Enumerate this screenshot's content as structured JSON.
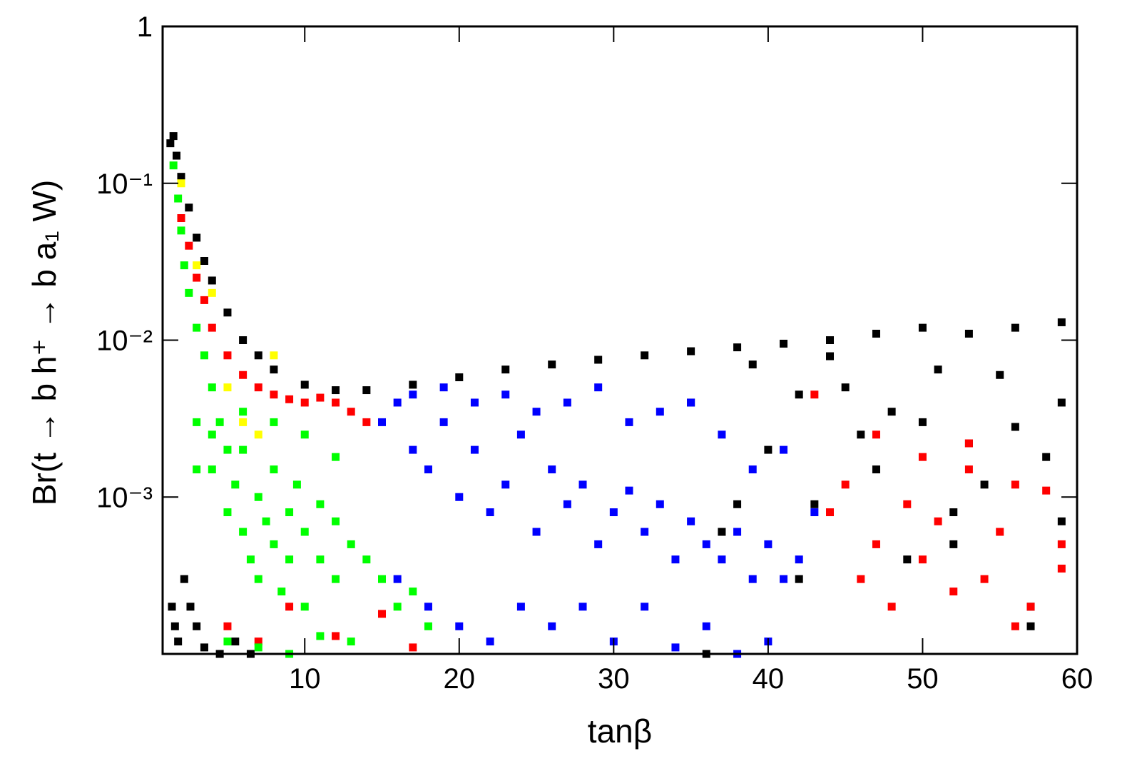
{
  "chart_data": {
    "type": "scatter",
    "x_label": "tanβ",
    "y_label": "Br(t → b h⁺ → b a₁ W)",
    "xlim": [
      0.8,
      60
    ],
    "xticks": [
      10,
      20,
      30,
      40,
      50,
      60
    ],
    "ylim": [
      0.0001,
      1
    ],
    "log_y": true,
    "yticks": [
      {
        "value": 1,
        "label": "1"
      },
      {
        "value": 0.1,
        "label": "10⁻¹"
      },
      {
        "value": 0.01,
        "label": "10⁻²"
      },
      {
        "value": 0.001,
        "label": "10⁻³"
      }
    ],
    "series": [
      {
        "color": "#000000",
        "x": [
          1.3,
          1.5,
          1.7,
          2,
          2.5,
          3,
          3.5,
          4,
          5,
          6,
          7,
          8,
          10,
          12,
          14,
          17,
          20,
          23,
          26,
          29,
          32,
          35,
          38,
          41,
          44,
          47,
          50,
          53,
          56,
          59,
          1.4,
          1.6,
          1.8,
          2.2,
          2.6,
          3,
          3.5,
          4.5,
          5.5,
          6.5,
          35,
          37,
          40,
          42,
          45,
          47,
          50,
          52,
          55,
          57,
          59,
          36,
          39,
          43,
          46,
          49,
          51,
          54,
          58,
          44,
          48,
          53,
          57,
          38,
          42,
          52,
          56,
          59
        ],
        "values": [
          0.18,
          0.2,
          0.15,
          0.11,
          0.07,
          0.045,
          0.032,
          0.024,
          0.015,
          0.01,
          0.008,
          0.0065,
          0.0052,
          0.0048,
          0.0048,
          0.0052,
          0.0058,
          0.0065,
          0.007,
          0.0075,
          0.008,
          0.0085,
          0.009,
          0.0095,
          0.01,
          0.011,
          0.012,
          0.011,
          0.012,
          0.013,
          0.0002,
          0.00015,
          0.00012,
          0.0003,
          0.0002,
          0.00015,
          0.00011,
          0.0001,
          0.00012,
          0.0001,
          0.004,
          0.0006,
          0.002,
          0.0003,
          0.005,
          0.0015,
          0.003,
          0.0008,
          0.006,
          0.0002,
          0.004,
          0.0001,
          0.007,
          0.0009,
          0.0025,
          0.0004,
          0.0065,
          0.0012,
          0.0018,
          0.0079,
          0.0035,
          0.0022,
          0.00015,
          0.0009,
          0.0045,
          0.0005,
          0.0028,
          0.0007
        ]
      },
      {
        "color": "#ff0000",
        "x": [
          2,
          2.5,
          3,
          3.5,
          4,
          5,
          6,
          7,
          8,
          9,
          10,
          11,
          12,
          13,
          14,
          5,
          7,
          9,
          12,
          15,
          17,
          44,
          45,
          46,
          47,
          48,
          49,
          50,
          51,
          52,
          53,
          54,
          55,
          56,
          57,
          58,
          59,
          43,
          47,
          50,
          53,
          56,
          59
        ],
        "values": [
          0.06,
          0.04,
          0.025,
          0.018,
          0.012,
          0.008,
          0.006,
          0.005,
          0.0045,
          0.0042,
          0.004,
          0.0043,
          0.004,
          0.0035,
          0.003,
          0.00015,
          0.00012,
          0.0002,
          0.00013,
          0.00018,
          0.00011,
          0.0008,
          0.0012,
          0.0003,
          0.0005,
          0.0002,
          0.0009,
          0.0004,
          0.0007,
          0.00025,
          0.0015,
          0.0003,
          0.0006,
          0.00015,
          0.0002,
          0.0011,
          0.00035,
          0.0045,
          0.0025,
          0.0018,
          0.0022,
          0.0012,
          0.0005
        ]
      },
      {
        "color": "#ffff00",
        "x": [
          2,
          3,
          4,
          5,
          6,
          7,
          8
        ],
        "values": [
          0.1,
          0.03,
          0.02,
          0.005,
          0.003,
          0.0025,
          0.008
        ]
      },
      {
        "color": "#00ff00",
        "x": [
          1.5,
          1.8,
          2,
          2.2,
          2.5,
          3,
          3,
          3.5,
          4,
          4,
          4.5,
          5,
          5,
          5.5,
          6,
          6,
          6.5,
          7,
          7,
          7.5,
          8,
          8,
          8.5,
          9,
          9,
          9.5,
          10,
          10,
          11,
          11,
          12,
          12,
          13,
          14,
          15,
          16,
          17,
          18,
          3,
          4,
          6,
          8,
          10,
          12,
          5,
          7,
          9,
          11,
          13
        ],
        "values": [
          0.13,
          0.08,
          0.05,
          0.03,
          0.02,
          0.012,
          0.003,
          0.008,
          0.005,
          0.0015,
          0.003,
          0.002,
          0.0008,
          0.0012,
          0.0006,
          0.002,
          0.0004,
          0.001,
          0.0003,
          0.0007,
          0.0005,
          0.0015,
          0.00025,
          0.0008,
          0.0004,
          0.0012,
          0.0006,
          0.0002,
          0.0009,
          0.0004,
          0.0007,
          0.0003,
          0.0005,
          0.0004,
          0.0003,
          0.0002,
          0.00025,
          0.00015,
          0.0015,
          0.0025,
          0.0035,
          0.003,
          0.0025,
          0.0018,
          0.00012,
          0.00011,
          0.0001,
          0.00013,
          0.00012
        ]
      },
      {
        "color": "#0000ff",
        "x": [
          15,
          16,
          17,
          18,
          19,
          20,
          21,
          22,
          23,
          24,
          25,
          26,
          27,
          28,
          29,
          30,
          31,
          32,
          33,
          34,
          35,
          36,
          37,
          38,
          39,
          40,
          41,
          42,
          16,
          18,
          20,
          22,
          24,
          26,
          28,
          30,
          32,
          34,
          36,
          38,
          40,
          17,
          19,
          21,
          23,
          25,
          27,
          29,
          31,
          33,
          35,
          37,
          39,
          41,
          43
        ],
        "values": [
          0.003,
          0.004,
          0.002,
          0.0015,
          0.003,
          0.001,
          0.002,
          0.0008,
          0.0012,
          0.0025,
          0.0006,
          0.0015,
          0.0009,
          0.0012,
          0.0005,
          0.0008,
          0.0011,
          0.0006,
          0.0009,
          0.0004,
          0.0007,
          0.0005,
          0.0004,
          0.0006,
          0.0003,
          0.0005,
          0.0003,
          0.0004,
          0.0003,
          0.0002,
          0.00015,
          0.00012,
          0.0002,
          0.00015,
          0.0002,
          0.00012,
          0.0002,
          0.00011,
          0.00015,
          0.0001,
          0.00012,
          0.0045,
          0.005,
          0.004,
          0.0045,
          0.0035,
          0.004,
          0.005,
          0.003,
          0.0035,
          0.004,
          0.0025,
          0.0015,
          0.002,
          0.0008
        ]
      }
    ]
  }
}
